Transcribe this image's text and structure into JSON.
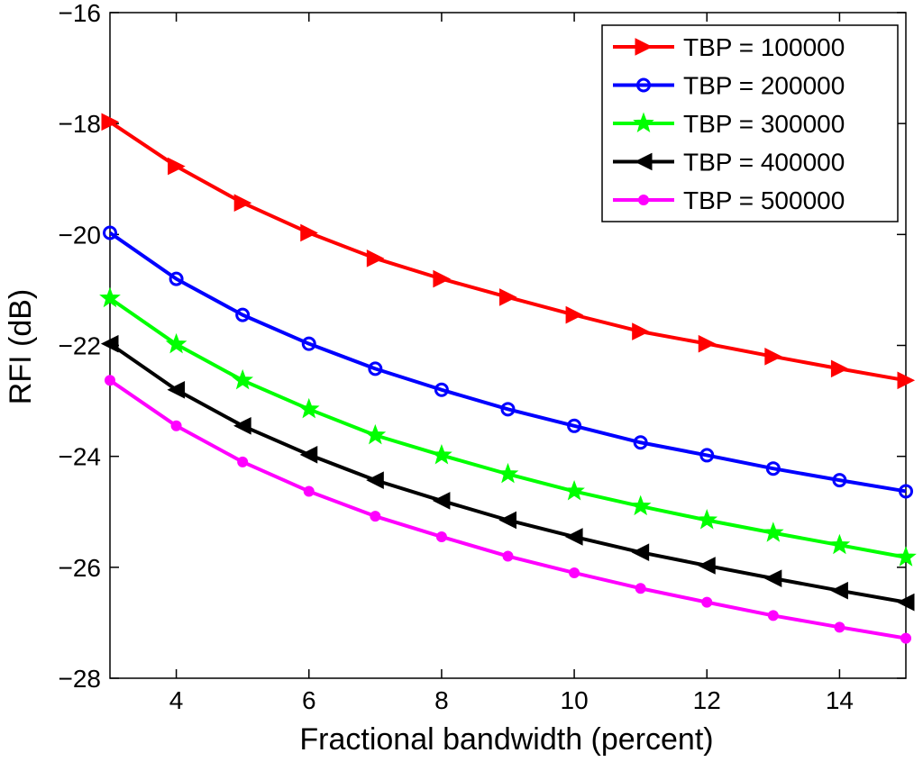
{
  "chart_data": {
    "type": "line",
    "title": "",
    "xlabel": "Fractional bandwidth (percent)",
    "ylabel": "RFI (dB)",
    "xlim": [
      3,
      15
    ],
    "ylim": [
      -28,
      -16
    ],
    "xticks": [
      4,
      6,
      8,
      10,
      12,
      14
    ],
    "xtick_labels": [
      "4",
      "6",
      "8",
      "10",
      "12",
      "14"
    ],
    "yticks": [
      -28,
      -26,
      -24,
      -22,
      -20,
      -18,
      -16
    ],
    "ytick_labels": [
      "−28",
      "−26",
      "−24",
      "−22",
      "−20",
      "−18",
      "−16"
    ],
    "grid": false,
    "legend_position": "top-right",
    "x": [
      3,
      4,
      5,
      6,
      7,
      8,
      9,
      10,
      11,
      12,
      13,
      14,
      15
    ],
    "series": [
      {
        "name": "TBP = 100000",
        "color": "#ff0000",
        "marker": "triangle-right",
        "values": [
          -17.97,
          -18.77,
          -19.43,
          -19.97,
          -20.43,
          -20.8,
          -21.13,
          -21.45,
          -21.75,
          -21.97,
          -22.2,
          -22.42,
          -22.63
        ]
      },
      {
        "name": "TBP = 200000",
        "color": "#0000ff",
        "marker": "circle-open",
        "values": [
          -19.97,
          -20.8,
          -21.45,
          -21.97,
          -22.42,
          -22.8,
          -23.15,
          -23.45,
          -23.75,
          -23.98,
          -24.22,
          -24.43,
          -24.63
        ]
      },
      {
        "name": "TBP = 300000",
        "color": "#00ff00",
        "marker": "star",
        "values": [
          -21.15,
          -21.98,
          -22.63,
          -23.15,
          -23.62,
          -23.98,
          -24.32,
          -24.63,
          -24.9,
          -25.15,
          -25.38,
          -25.6,
          -25.82
        ]
      },
      {
        "name": "TBP = 400000",
        "color": "#000000",
        "marker": "triangle-left",
        "values": [
          -21.97,
          -22.8,
          -23.45,
          -23.97,
          -24.43,
          -24.8,
          -25.15,
          -25.45,
          -25.73,
          -25.97,
          -26.2,
          -26.42,
          -26.63
        ]
      },
      {
        "name": "TBP = 500000",
        "color": "#ff00ff",
        "marker": "dot",
        "values": [
          -22.63,
          -23.45,
          -24.1,
          -24.63,
          -25.08,
          -25.45,
          -25.8,
          -26.1,
          -26.38,
          -26.63,
          -26.87,
          -27.08,
          -27.28
        ]
      }
    ]
  }
}
